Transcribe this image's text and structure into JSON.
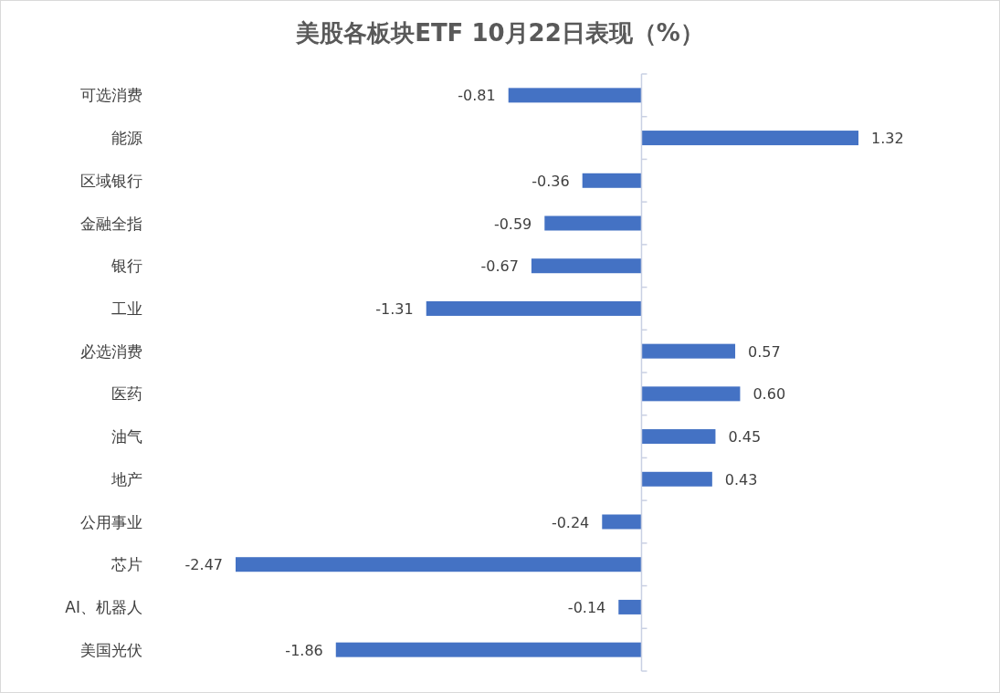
{
  "chart_data": {
    "type": "bar",
    "orientation": "horizontal",
    "title": "美股各板块ETF  10月22日表现（%）",
    "categories": [
      "可选消费",
      "能源",
      "区域银行",
      "金融全指",
      "银行",
      "工业",
      "必选消费",
      "医药",
      "油气",
      "地产",
      "公用事业",
      "芯片",
      "AI、机器人",
      "美国光伏"
    ],
    "values": [
      -0.81,
      1.32,
      -0.36,
      -0.59,
      -0.67,
      -1.31,
      0.57,
      0.6,
      0.45,
      0.43,
      -0.24,
      -2.47,
      -0.14,
      -1.86
    ],
    "value_labels": [
      "-0.81",
      "1.32",
      "-0.36",
      "-0.59",
      "-0.67",
      "-1.31",
      "0.57",
      "0.60",
      "0.45",
      "0.43",
      "-0.24",
      "-2.47",
      "-0.14",
      "-1.86"
    ],
    "color": "#4472c4",
    "grid": false
  }
}
